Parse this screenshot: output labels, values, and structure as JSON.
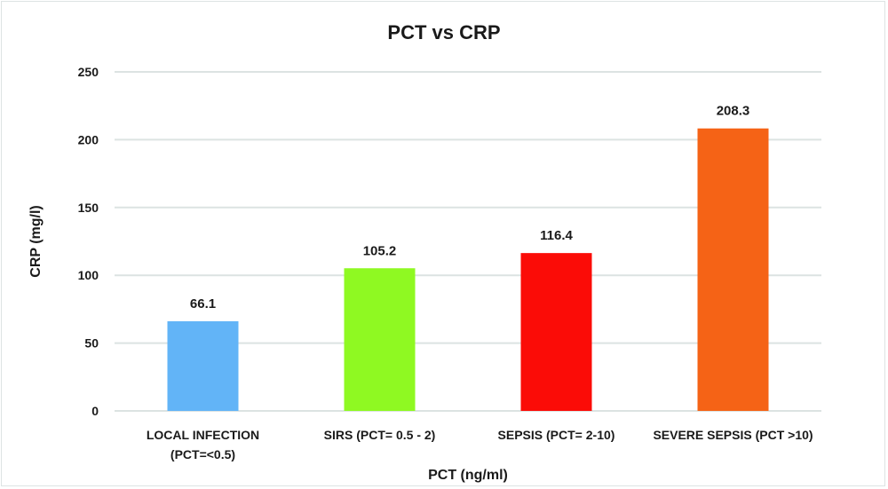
{
  "chart_data": {
    "type": "bar",
    "title": "PCT vs CRP",
    "xlabel": "PCT (ng/ml)",
    "ylabel": "CRP (mg/l)",
    "ylim": [
      0,
      250
    ],
    "yticks": [
      0,
      50,
      100,
      150,
      200,
      250
    ],
    "grid": true,
    "legend": "none",
    "categories": [
      [
        "LOCAL INFECTION",
        "(PCT=<0.5)"
      ],
      [
        "SIRS (PCT= 0.5 - 2)"
      ],
      [
        "SEPSIS (PCT= 2-10)"
      ],
      [
        "SEVERE SEPSIS (PCT >10)"
      ]
    ],
    "values": [
      66.1,
      105.2,
      116.4,
      208.3
    ],
    "data_labels": [
      "66.1",
      "105.2",
      "116.4",
      "208.3"
    ],
    "colors": [
      "#62b4f7",
      "#8ff922",
      "#fb0c07",
      "#f56316"
    ]
  }
}
